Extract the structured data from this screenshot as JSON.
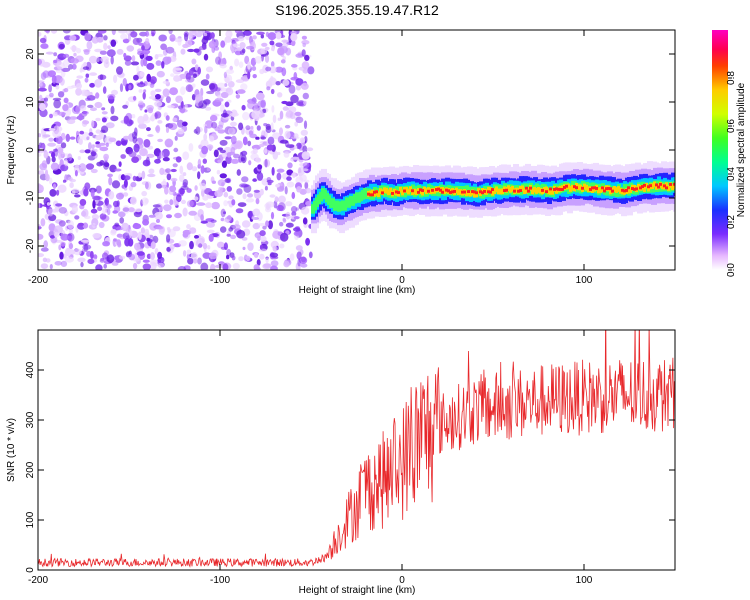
{
  "figure": {
    "title": "S196.2025.355.19.47.R12"
  },
  "chart_data": [
    {
      "type": "heatmap",
      "xlabel": "Height of straight line (km)",
      "ylabel": "Frequency (Hz)",
      "xlim": [
        -200,
        150
      ],
      "ylim": [
        -25,
        25
      ],
      "xticks": [
        -200,
        -100,
        0,
        100
      ],
      "xtick_labels": [
        "-200",
        "-100",
        "0",
        "100"
      ],
      "yticks": [
        -20,
        -10,
        0,
        10,
        20
      ],
      "ytick_labels": [
        "-20",
        "-10",
        "0",
        "10",
        "20"
      ],
      "grid": false,
      "noise_region_x": [
        -200,
        -50
      ],
      "ridge": {
        "x": [
          -50,
          -45,
          -40,
          -35,
          -30,
          -25,
          -20,
          -15,
          -10,
          -5,
          0,
          10,
          20,
          30,
          40,
          50,
          60,
          70,
          80,
          90,
          100,
          110,
          120,
          130,
          140,
          150
        ],
        "y": [
          -12,
          -9,
          -11,
          -12,
          -11,
          -10,
          -9,
          -9,
          -8.5,
          -9,
          -8.5,
          -8.5,
          -8.5,
          -8.5,
          -9,
          -8.5,
          -8.2,
          -8.2,
          -8.5,
          -7.8,
          -7.8,
          -8.2,
          -8.5,
          -7.8,
          -7.5,
          -7.5
        ]
      },
      "colorbar": {
        "label": "Normalized spectral amplitude",
        "range": [
          0,
          1
        ],
        "ticks": [
          0,
          0.2,
          0.4,
          0.6,
          0.8
        ],
        "tick_labels": [
          "0.0",
          "0.2",
          "0.4",
          "0.6",
          "0.8"
        ]
      }
    },
    {
      "type": "line",
      "xlabel": "Height of straight line (km)",
      "ylabel": "SNR (10 * v/v)",
      "xlim": [
        -200,
        150
      ],
      "ylim": [
        0,
        480
      ],
      "xticks": [
        -200,
        -100,
        0,
        100
      ],
      "xtick_labels": [
        "-200",
        "-100",
        "0",
        "100"
      ],
      "yticks": [
        0,
        100,
        200,
        300,
        400
      ],
      "ytick_labels": [
        "0",
        "100",
        "200",
        "300",
        "400"
      ],
      "grid": false,
      "color": "#e8282b",
      "envelope": {
        "x": [
          -200,
          -50,
          -42,
          -35,
          -30,
          -25,
          -20,
          -15,
          -10,
          -5,
          0,
          5,
          10,
          20,
          30,
          40,
          50,
          60,
          80,
          100,
          120,
          150
        ],
        "y": [
          15,
          15,
          25,
          70,
          100,
          130,
          160,
          175,
          180,
          200,
          215,
          240,
          265,
          290,
          305,
          320,
          325,
          330,
          340,
          345,
          350,
          350
        ]
      }
    }
  ]
}
